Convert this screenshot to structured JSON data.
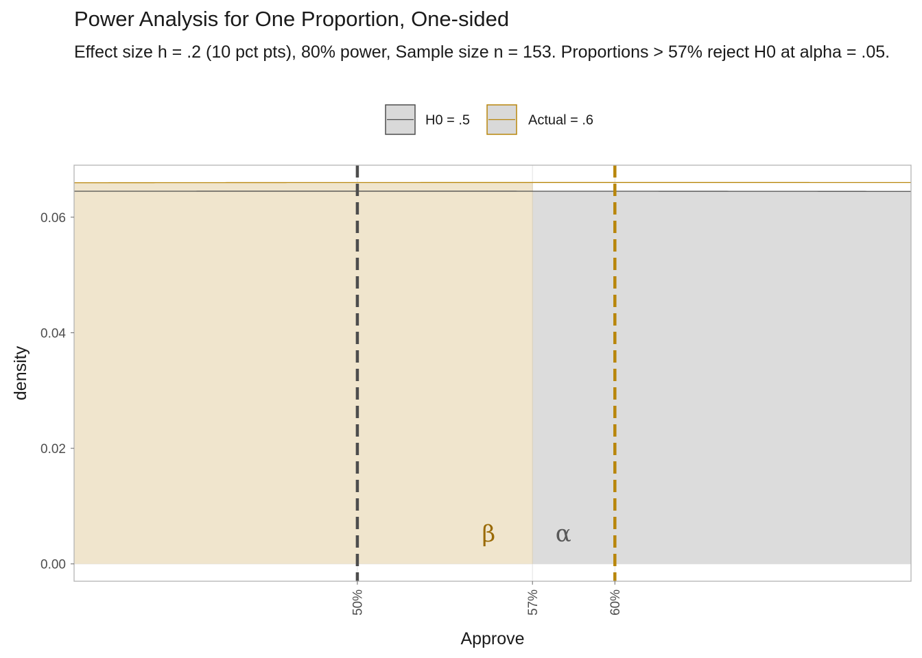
{
  "chart_data": {
    "type": "area",
    "title": "Power Analysis for One Proportion, One-sided",
    "subtitle": "Effect size h = .2 (10 pct pts), 80% power, Sample size n = 153. Proportions > 57% reject H0 at alpha = .05.",
    "xlabel": "Approve",
    "ylabel": "density",
    "xlim": [
      0.39,
      0.715
    ],
    "ylim": [
      -0.003,
      0.069
    ],
    "x_ticks": [
      {
        "value": 0.5,
        "label": "50%"
      },
      {
        "value": 0.568,
        "label": "57%"
      },
      {
        "value": 0.6,
        "label": "60%"
      }
    ],
    "y_ticks": [
      {
        "value": 0.0,
        "label": "0.00"
      },
      {
        "value": 0.02,
        "label": "0.02"
      },
      {
        "value": 0.04,
        "label": "0.04"
      },
      {
        "value": 0.06,
        "label": "0.06"
      }
    ],
    "grid": true,
    "legend_position": "top",
    "critical_value": 0.568,
    "series": [
      {
        "name": "H0 = .5",
        "mean": 0.5,
        "peak_density": 0.0645,
        "color": "#4d4d4d",
        "mean_line_color": "#4d4d4d"
      },
      {
        "name": "Actual = .6",
        "mean": 0.6,
        "peak_density": 0.066,
        "color": "#b8860b",
        "mean_line_color": "#b8860b"
      }
    ],
    "annotations": [
      {
        "text": "β",
        "x": 0.551,
        "y": 0.0053,
        "color": "#9a6a05"
      },
      {
        "text": "α",
        "x": 0.58,
        "y": 0.0053,
        "color": "#595959"
      }
    ],
    "shaded_regions": [
      {
        "label": "beta",
        "series": "Actual = .6",
        "from": 0.39,
        "to": 0.568,
        "fill": "#f0e5cd"
      },
      {
        "label": "alpha",
        "series": "H0 = .5",
        "from": 0.568,
        "to": 0.715,
        "fill": "#dcdcdc"
      }
    ]
  }
}
